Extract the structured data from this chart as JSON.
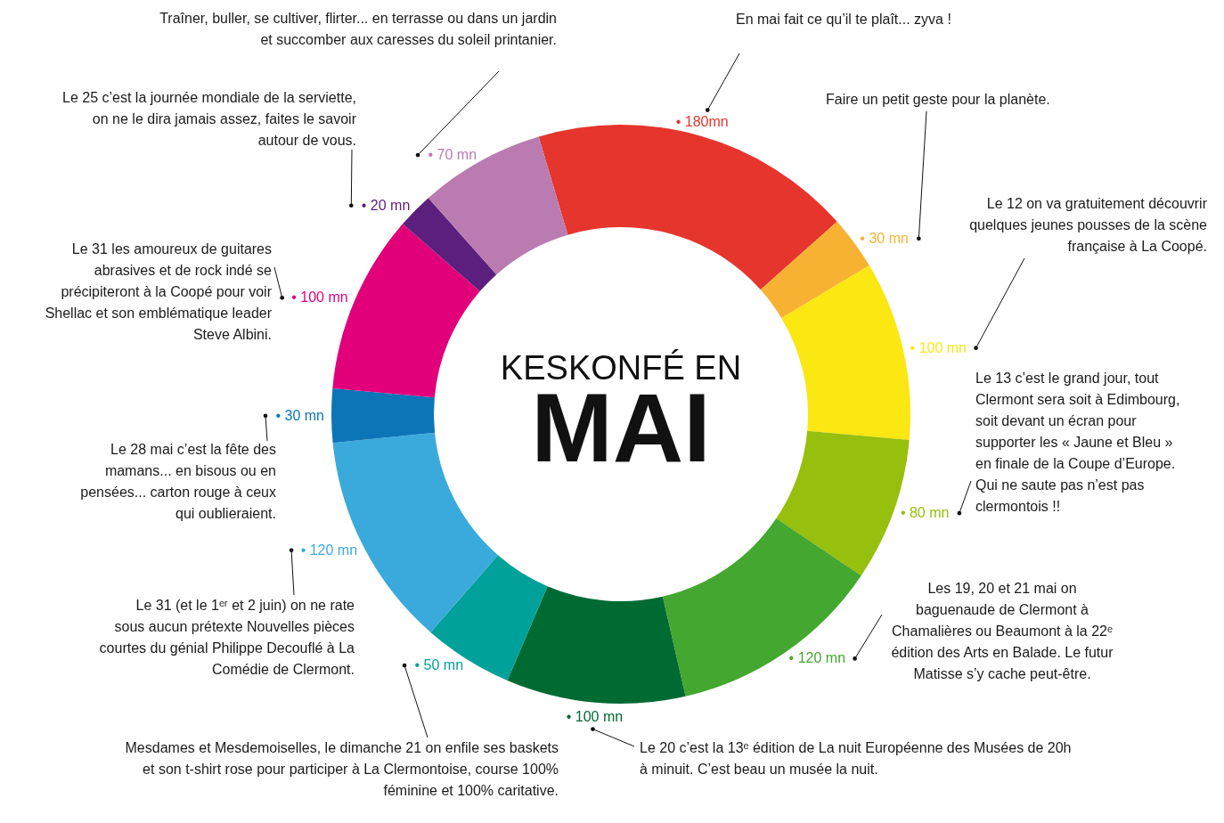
{
  "chart_data": {
    "type": "donut",
    "title": "KESKONFÉ EN",
    "subtitle": "MAI",
    "categories": [
      null,
      null,
      null,
      null,
      null,
      null,
      null,
      null,
      null,
      null,
      null,
      null
    ],
    "values": [
      180,
      30,
      100,
      80,
      120,
      100,
      50,
      120,
      30,
      100,
      20,
      70
    ],
    "colors": [
      "#e5352d",
      "#f7b233",
      "#fbe711",
      "#97bf0d",
      "#44a72f",
      "#006a33",
      "#00a19a",
      "#3aaadc",
      "#0c75b8",
      "#e2007a",
      "#5c1f7d",
      "#b97bb0"
    ],
    "value_labels": [
      "• 180mn",
      "• 30 mn",
      "• 100 mn",
      "• 80 mn",
      "• 120 mn",
      "• 100 mn",
      "• 50 mn",
      "• 120 mn",
      "• 30 mn",
      "• 100 mn",
      "• 20 mn",
      "• 70 mn"
    ],
    "annotations": [
      "En mai fait ce qu’il te plaît... zyva !",
      "Faire un petit geste pour la planète.",
      "Le 12 on va gratuitement découvrir\nquelques jeunes pousses de la scène\nfrançaise à La Coopé.",
      "Le 13 c’est le grand jour, tout\nClermont sera soit à Edimbourg,\nsoit devant un écran pour\nsupporter les « Jaune et Bleu »\nen finale de la Coupe d’Europe.\nQui ne saute pas n’est pas\nclermontois !!",
      "Les 19, 20 et 21 mai on\nbaguenaude de Clermont à\nChamalières ou Beaumont à la 22ᵉ\nédition des Arts en Balade. Le futur\nMatisse s’y cache peut-être.",
      "Le 20 c’est la 13ᵉ édition de La nuit Européenne des Musées de 20h\nà minuit. C’est beau un musée la nuit.",
      "Mesdames et Mesdemoiselles, le dimanche 21 on enfile ses baskets\net son t-shirt rose pour participer à La Clermontoise, course 100%\nféminine et 100% caritative.",
      "Le 31 (et le 1ᵉʳ et 2 juin) on ne rate\nsous aucun prétexte Nouvelles pièces\ncourtes du génial Philippe Decouflé à La\nComédie de Clermont.",
      "Le 28 mai c’est la fête des\nmamans... en bisous ou en\npensées... carton rouge à ceux\nqui oublieraient.",
      "Le 31 les amoureux de guitares\nabrasives et de rock indé se\nprécipiteront à la Coopé pour voir\nShellac et son emblématique leader\nSteve Albini.",
      "Le 25 c’est la journée mondiale de la serviette,\non ne le dira jamais assez, faites le savoir\nautour de vous.",
      "Traîner, buller, se cultiver, flirter... en terrasse ou dans un jardin\net succomber aux caresses du soleil printanier."
    ]
  }
}
